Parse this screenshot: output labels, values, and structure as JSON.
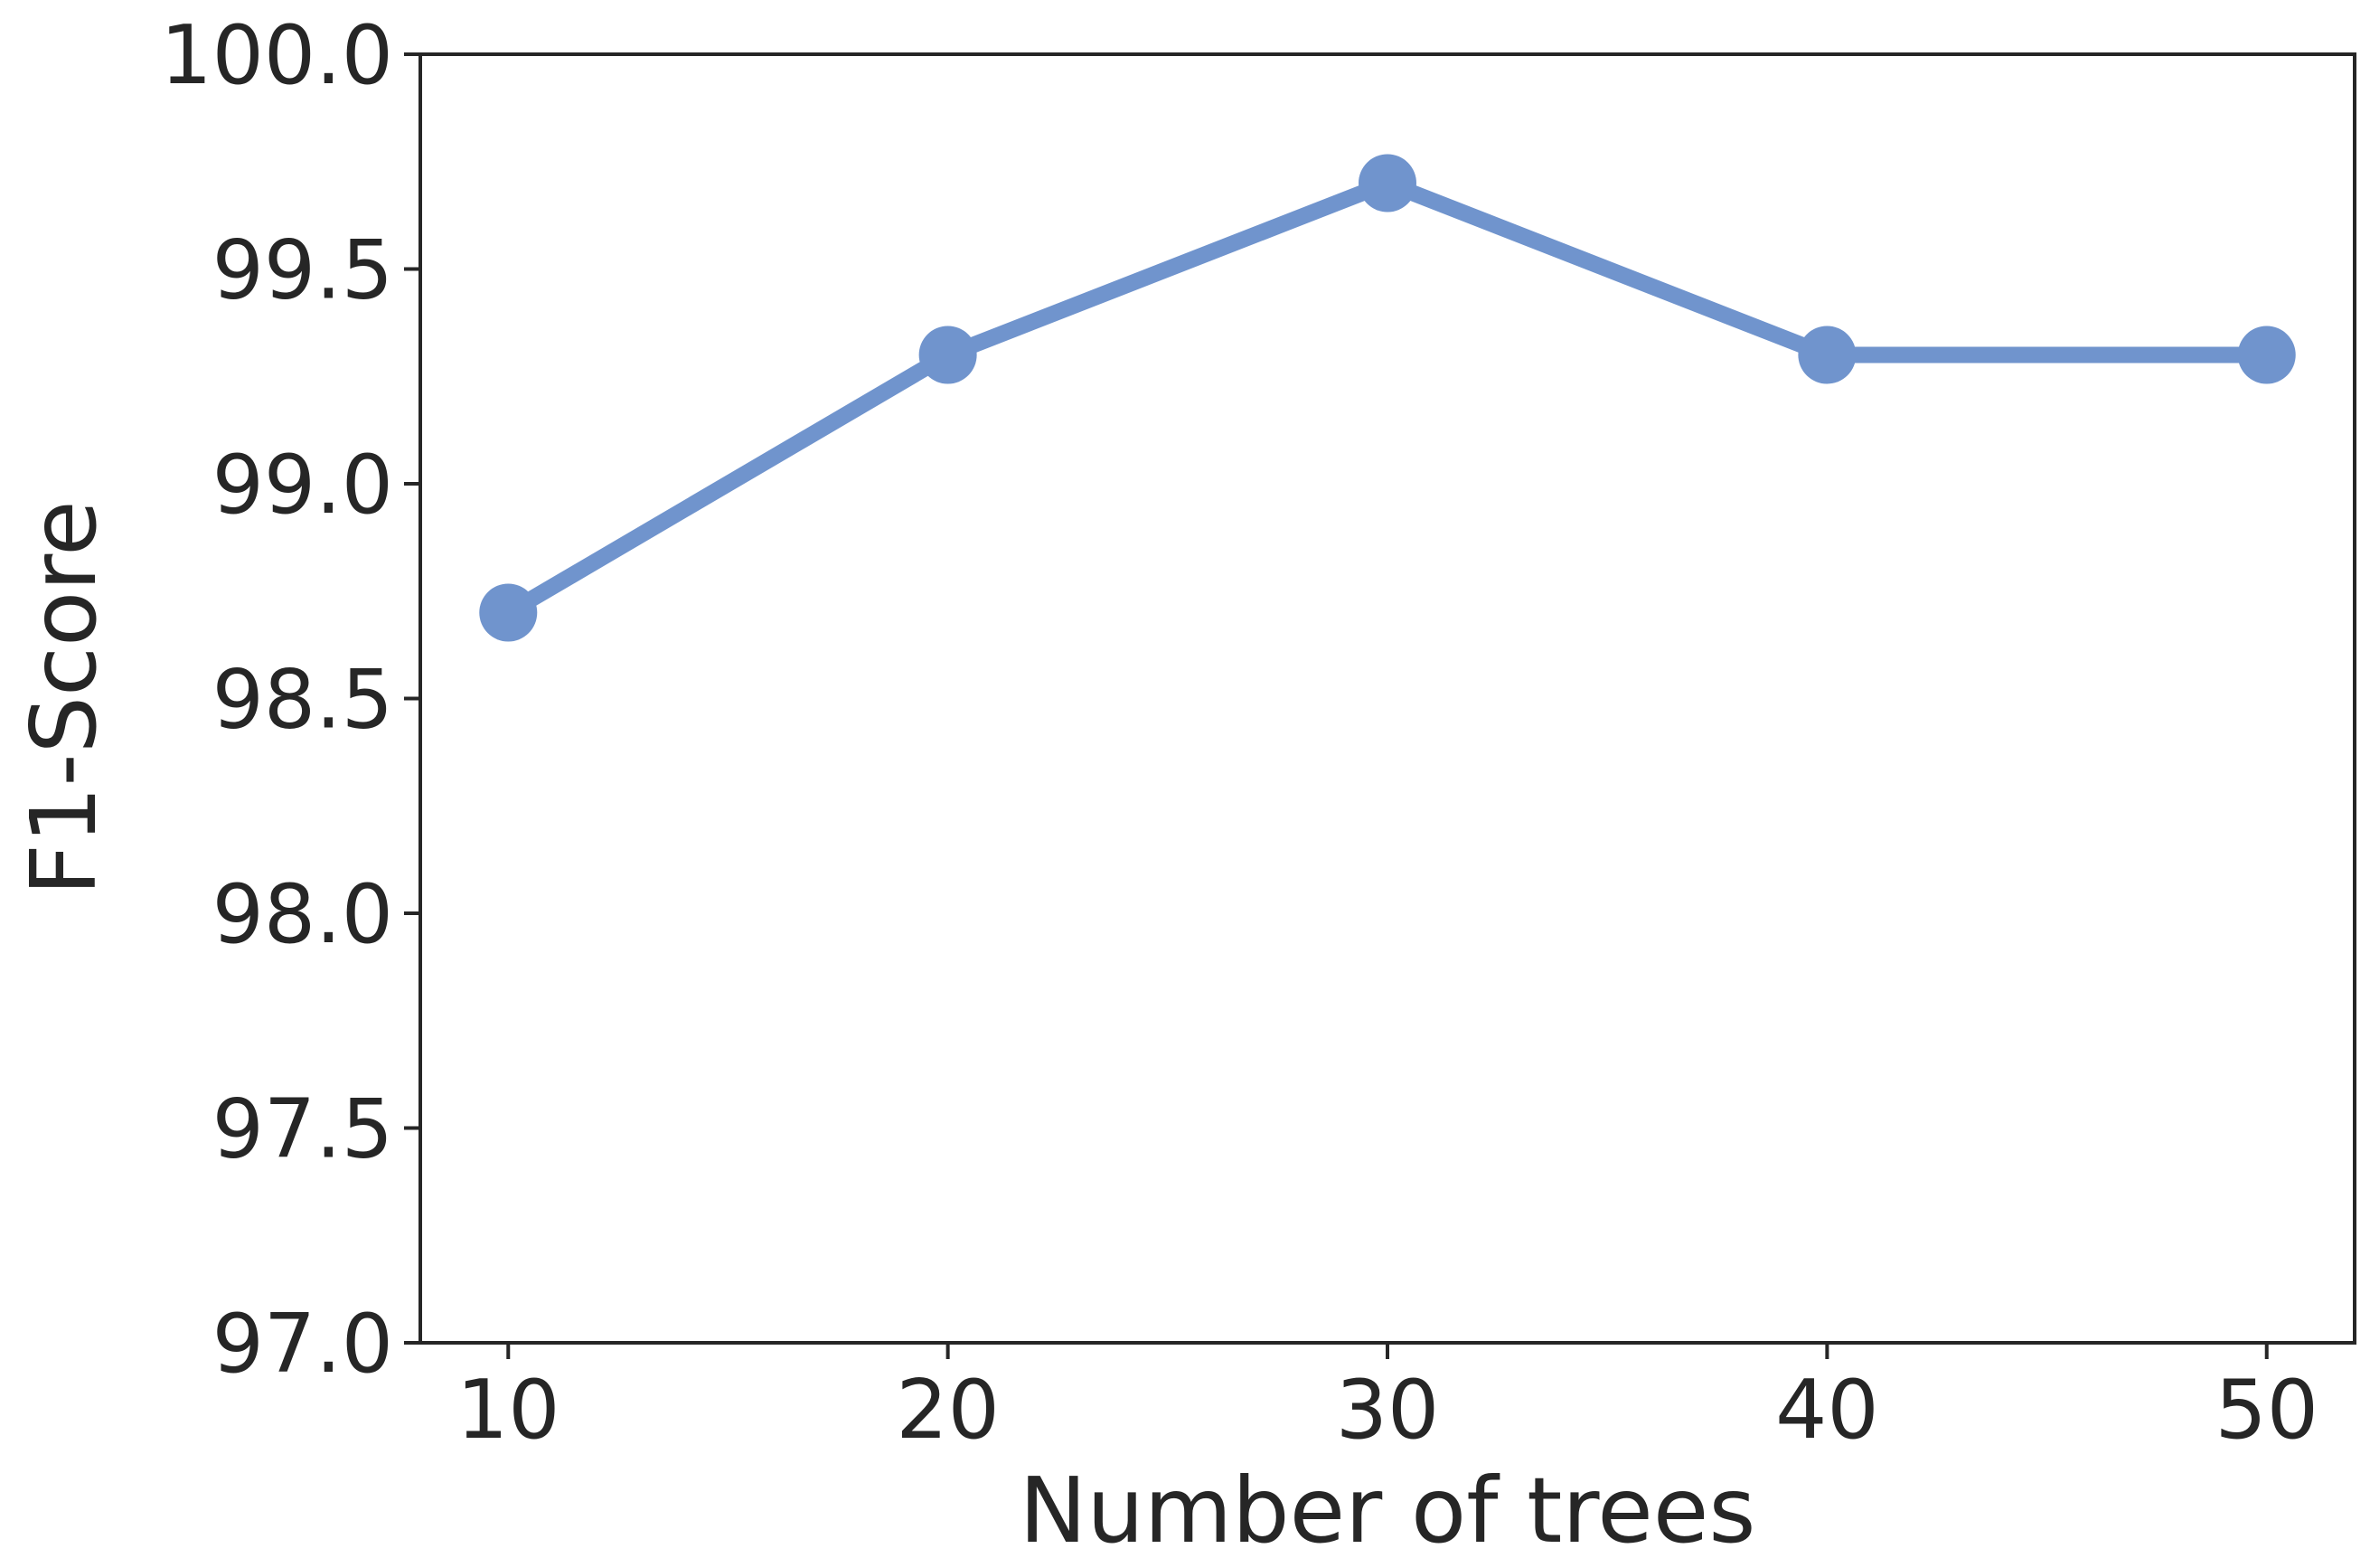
{
  "chart_data": {
    "type": "line",
    "title": "",
    "xlabel": "Number of trees",
    "ylabel": "F1-Score",
    "x": [
      10,
      20,
      30,
      40,
      50
    ],
    "series": [
      {
        "values": [
          98.7,
          99.3,
          99.7,
          99.3,
          99.3
        ]
      }
    ],
    "xlim": [
      8,
      52
    ],
    "ylim": [
      97.0,
      100.0
    ],
    "xticks": [
      10,
      20,
      30,
      40,
      50
    ],
    "xtick_labels": [
      "10",
      "20",
      "30",
      "40",
      "50"
    ],
    "yticks": [
      97.0,
      97.5,
      98.0,
      98.5,
      99.0,
      99.5,
      100.0
    ],
    "ytick_labels": [
      "97.0",
      "97.5",
      "98.0",
      "98.5",
      "99.0",
      "99.5",
      "100.0"
    ],
    "grid": false,
    "legend": "none",
    "colors": {
      "series": "#7094cd",
      "axis": "#262626",
      "text": "#262626"
    }
  }
}
